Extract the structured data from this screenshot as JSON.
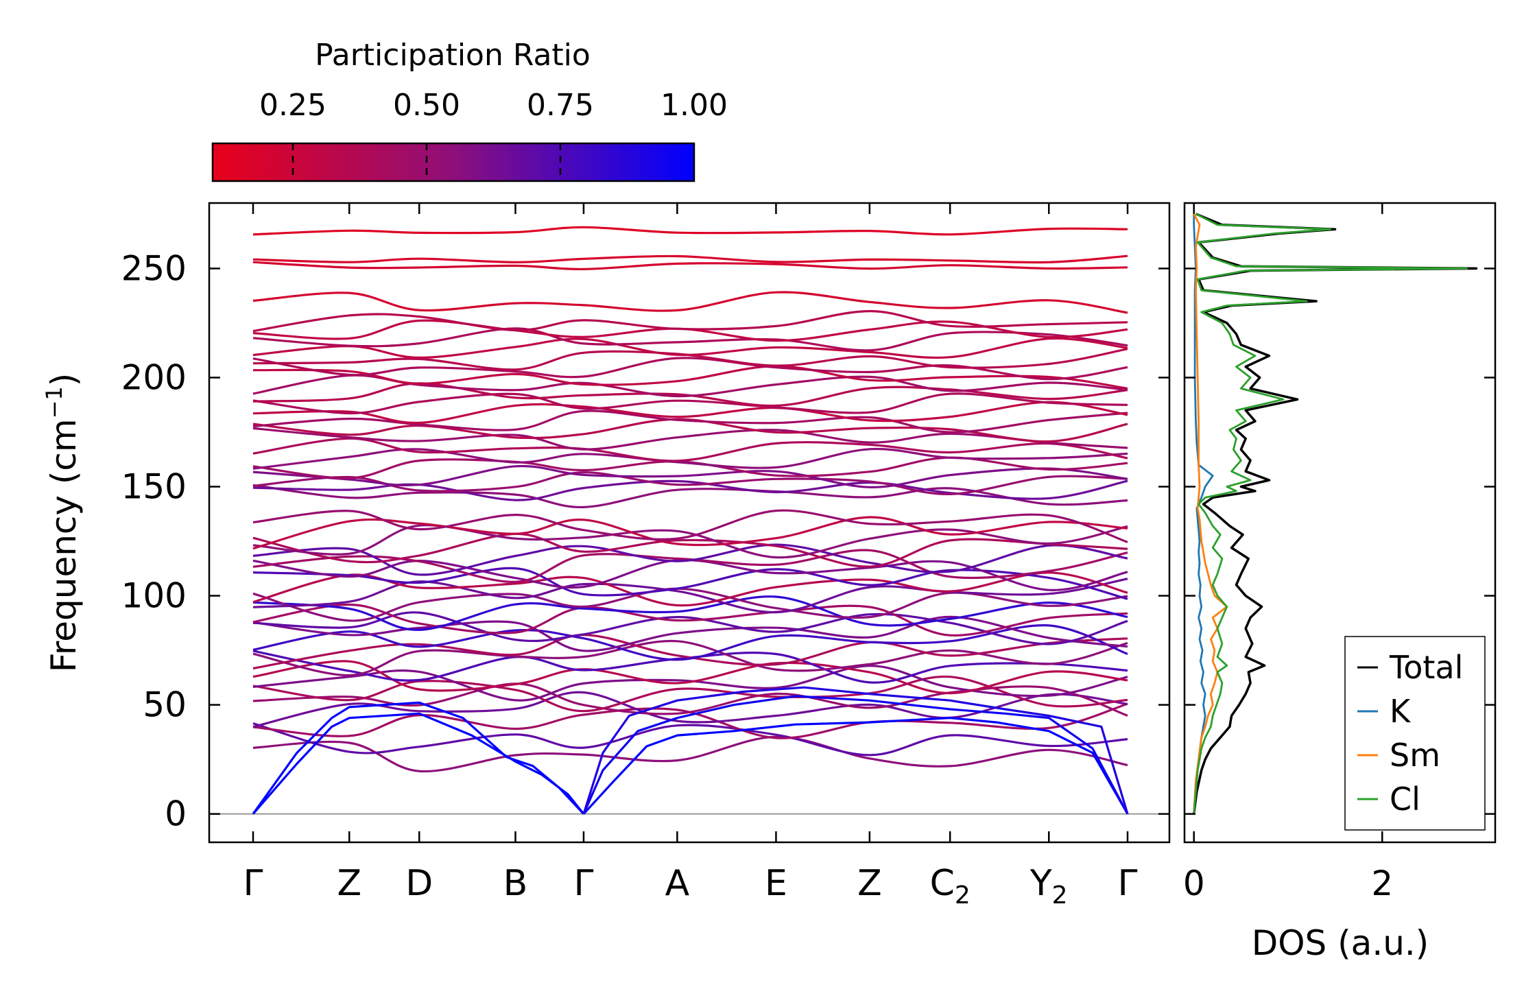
{
  "colorbar": {
    "title": "Participation Ratio",
    "range": [
      0.1,
      1.0
    ],
    "ticks": [
      0.25,
      0.5,
      0.75,
      1.0
    ],
    "tick_labels": [
      "0.25",
      "0.50",
      "0.75",
      "1.00"
    ],
    "color_low": "#e8001a",
    "color_mid": "#8e0f7a",
    "color_high": "#0000ff"
  },
  "chart_data": [
    {
      "type": "line",
      "name": "phonon-dispersion",
      "xlabel": "",
      "ylabel": "Frequency (cm",
      "ylabel_superscript": "−1",
      "ylabel_suffix": ")",
      "ylim": [
        -13,
        280
      ],
      "yticks": [
        0,
        50,
        100,
        150,
        200,
        250
      ],
      "ytick_labels": [
        "0",
        "50",
        "100",
        "150",
        "200",
        "250"
      ],
      "path_labels": [
        {
          "label": "Γ",
          "sub": "",
          "x": 0.0
        },
        {
          "label": "Z",
          "sub": "",
          "x": 0.11
        },
        {
          "label": "D",
          "sub": "",
          "x": 0.19
        },
        {
          "label": "B",
          "sub": "",
          "x": 0.3
        },
        {
          "label": "Γ",
          "sub": "",
          "x": 0.378
        },
        {
          "label": "A",
          "sub": "",
          "x": 0.485
        },
        {
          "label": "E",
          "sub": "",
          "x": 0.598
        },
        {
          "label": "Z",
          "sub": "",
          "x": 0.705
        },
        {
          "label": "C",
          "sub": "2",
          "x": 0.797
        },
        {
          "label": "Y",
          "sub": "2",
          "x": 0.91
        },
        {
          "label": "Γ",
          "sub": "",
          "x": 1.0
        }
      ],
      "zero_line": 0,
      "acoustic_branches": [
        {
          "x": [
            0,
            0.05,
            0.09,
            0.11,
            0.19,
            0.24,
            0.29,
            0.32,
            0.35,
            0.378
          ],
          "y": [
            0,
            28,
            44,
            49,
            51,
            44,
            26,
            22,
            12,
            0
          ],
          "ratio": 1.0
        },
        {
          "x": [
            0,
            0.05,
            0.09,
            0.11,
            0.19,
            0.25,
            0.3,
            0.33,
            0.36,
            0.378
          ],
          "y": [
            0,
            23,
            40,
            44,
            46,
            36,
            24,
            18,
            9,
            0
          ],
          "ratio": 1.0
        },
        {
          "x": [
            0.378,
            0.41,
            0.45,
            0.485,
            0.55,
            0.62,
            0.705,
            0.797,
            0.85,
            0.91,
            0.96,
            1.0
          ],
          "y": [
            0,
            14,
            31,
            36,
            38,
            41,
            42,
            44,
            42,
            38,
            28,
            0
          ],
          "ratio": 1.0
        },
        {
          "x": [
            0.378,
            0.4,
            0.44,
            0.485,
            0.55,
            0.62,
            0.705,
            0.797,
            0.86,
            0.91,
            0.96,
            1.0
          ],
          "y": [
            0,
            20,
            38,
            44,
            50,
            54,
            52,
            48,
            46,
            44,
            30,
            0
          ],
          "ratio": 0.95
        },
        {
          "x": [
            0.378,
            0.4,
            0.43,
            0.485,
            0.56,
            0.63,
            0.705,
            0.797,
            0.86,
            0.91,
            0.97,
            1.0
          ],
          "y": [
            0,
            28,
            45,
            52,
            56,
            58,
            55,
            52,
            48,
            45,
            40,
            0
          ],
          "ratio": 0.9
        }
      ],
      "optical_branch_levels": [
        27,
        34,
        42,
        48,
        52,
        55,
        60,
        63,
        68,
        72,
        75,
        79,
        83,
        86,
        90,
        93,
        97,
        101,
        104,
        107,
        111,
        115,
        118,
        122,
        126,
        130,
        133,
        146,
        149,
        152,
        155,
        159,
        163,
        167,
        172,
        176,
        180,
        184,
        188,
        192,
        196,
        200,
        204,
        208,
        213,
        217,
        221,
        225,
        234,
        251,
        254,
        267
      ],
      "mode_ratio_levels": [
        0.55,
        0.7,
        0.45,
        0.65,
        0.5,
        0.4,
        0.6,
        0.35,
        0.75,
        0.55,
        0.4,
        0.8,
        0.6,
        0.7,
        0.45,
        0.85,
        0.55,
        0.65,
        0.35,
        0.75,
        0.6,
        0.45,
        0.7,
        0.4,
        0.55,
        0.3,
        0.5,
        0.55,
        0.65,
        0.5,
        0.6,
        0.45,
        0.55,
        0.4,
        0.5,
        0.35,
        0.45,
        0.3,
        0.4,
        0.35,
        0.45,
        0.3,
        0.4,
        0.35,
        0.3,
        0.4,
        0.3,
        0.35,
        0.2,
        0.2,
        0.18,
        0.15
      ]
    },
    {
      "type": "line",
      "name": "phonon-dos",
      "xlabel": "DOS (a.u.)",
      "xlim": [
        -0.1,
        3.2
      ],
      "xticks": [
        0,
        2
      ],
      "xtick_labels": [
        "0",
        "2"
      ],
      "ylim": [
        -13,
        280
      ],
      "legend_position": "bottom-right",
      "series": [
        {
          "name": "Total",
          "color": "#000000",
          "freq": [
            0,
            10,
            20,
            25,
            30,
            35,
            40,
            45,
            50,
            55,
            60,
            65,
            68,
            72,
            78,
            85,
            90,
            95,
            100,
            105,
            110,
            117,
            122,
            128,
            132,
            138,
            142,
            145,
            148,
            150,
            153,
            157,
            162,
            167,
            172,
            176,
            180,
            185,
            190,
            195,
            200,
            205,
            210,
            215,
            220,
            225,
            230,
            233,
            235,
            240,
            245,
            249,
            250,
            251,
            255,
            262,
            266,
            268,
            270,
            275
          ],
          "dos": [
            0,
            0.03,
            0.08,
            0.12,
            0.18,
            0.28,
            0.38,
            0.4,
            0.48,
            0.55,
            0.6,
            0.58,
            0.75,
            0.55,
            0.62,
            0.55,
            0.6,
            0.72,
            0.55,
            0.45,
            0.5,
            0.58,
            0.4,
            0.52,
            0.38,
            0.22,
            0.1,
            0.2,
            0.65,
            0.5,
            0.8,
            0.55,
            0.6,
            0.5,
            0.55,
            0.45,
            0.65,
            0.55,
            1.1,
            0.6,
            0.7,
            0.55,
            0.8,
            0.5,
            0.45,
            0.35,
            0.1,
            0.4,
            1.3,
            0.1,
            0.05,
            0.6,
            3.0,
            0.5,
            0.2,
            0.05,
            0.9,
            1.5,
            0.3,
            0.02
          ]
        },
        {
          "name": "K",
          "color": "#1f77b4",
          "freq": [
            0,
            15,
            25,
            35,
            40,
            45,
            50,
            55,
            60,
            65,
            70,
            75,
            80,
            85,
            90,
            95,
            100,
            105,
            110,
            115,
            120,
            125,
            130,
            135,
            140,
            145,
            150,
            155,
            160,
            170,
            180,
            200,
            220,
            240,
            250,
            260,
            270,
            275
          ],
          "dos": [
            0,
            0.02,
            0.05,
            0.08,
            0.1,
            0.12,
            0.1,
            0.12,
            0.08,
            0.1,
            0.07,
            0.09,
            0.06,
            0.08,
            0.05,
            0.08,
            0.06,
            0.07,
            0.05,
            0.06,
            0.05,
            0.06,
            0.05,
            0.04,
            0.03,
            0.08,
            0.12,
            0.2,
            0.05,
            0.03,
            0.02,
            0.01,
            0.01,
            0.01,
            0.02,
            0.01,
            0.0,
            0.0
          ]
        },
        {
          "name": "Sm",
          "color": "#ff7f0e",
          "freq": [
            0,
            15,
            25,
            35,
            40,
            45,
            50,
            55,
            60,
            65,
            70,
            75,
            80,
            85,
            90,
            95,
            100,
            105,
            110,
            115,
            120,
            125,
            130,
            135,
            140,
            145,
            150,
            160,
            180,
            200,
            220,
            240,
            250,
            260,
            270,
            275
          ],
          "dos": [
            0,
            0.02,
            0.05,
            0.08,
            0.12,
            0.15,
            0.2,
            0.18,
            0.22,
            0.25,
            0.2,
            0.22,
            0.18,
            0.25,
            0.2,
            0.35,
            0.22,
            0.18,
            0.15,
            0.12,
            0.1,
            0.08,
            0.07,
            0.06,
            0.04,
            0.05,
            0.06,
            0.05,
            0.05,
            0.04,
            0.03,
            0.02,
            0.03,
            0.02,
            0.06,
            0.0
          ]
        },
        {
          "name": "Cl",
          "color": "#2ca02c",
          "freq": [
            0,
            10,
            20,
            25,
            30,
            35,
            40,
            45,
            50,
            55,
            60,
            65,
            68,
            72,
            78,
            85,
            90,
            95,
            100,
            105,
            110,
            117,
            122,
            128,
            132,
            138,
            142,
            145,
            148,
            150,
            153,
            157,
            162,
            167,
            172,
            176,
            180,
            185,
            190,
            195,
            200,
            205,
            210,
            215,
            220,
            225,
            230,
            233,
            235,
            240,
            245,
            249,
            250,
            251,
            255,
            262,
            266,
            268,
            270,
            275
          ],
          "dos": [
            0,
            0.02,
            0.04,
            0.06,
            0.08,
            0.12,
            0.18,
            0.2,
            0.24,
            0.28,
            0.3,
            0.25,
            0.35,
            0.25,
            0.3,
            0.25,
            0.3,
            0.35,
            0.25,
            0.2,
            0.25,
            0.3,
            0.2,
            0.28,
            0.2,
            0.12,
            0.05,
            0.12,
            0.45,
            0.35,
            0.6,
            0.4,
            0.5,
            0.42,
            0.45,
            0.38,
            0.55,
            0.45,
            0.95,
            0.5,
            0.6,
            0.45,
            0.65,
            0.42,
            0.38,
            0.3,
            0.08,
            0.35,
            1.2,
            0.08,
            0.04,
            0.55,
            2.9,
            0.45,
            0.18,
            0.04,
            0.85,
            1.45,
            0.25,
            0.02
          ]
        }
      ]
    }
  ]
}
